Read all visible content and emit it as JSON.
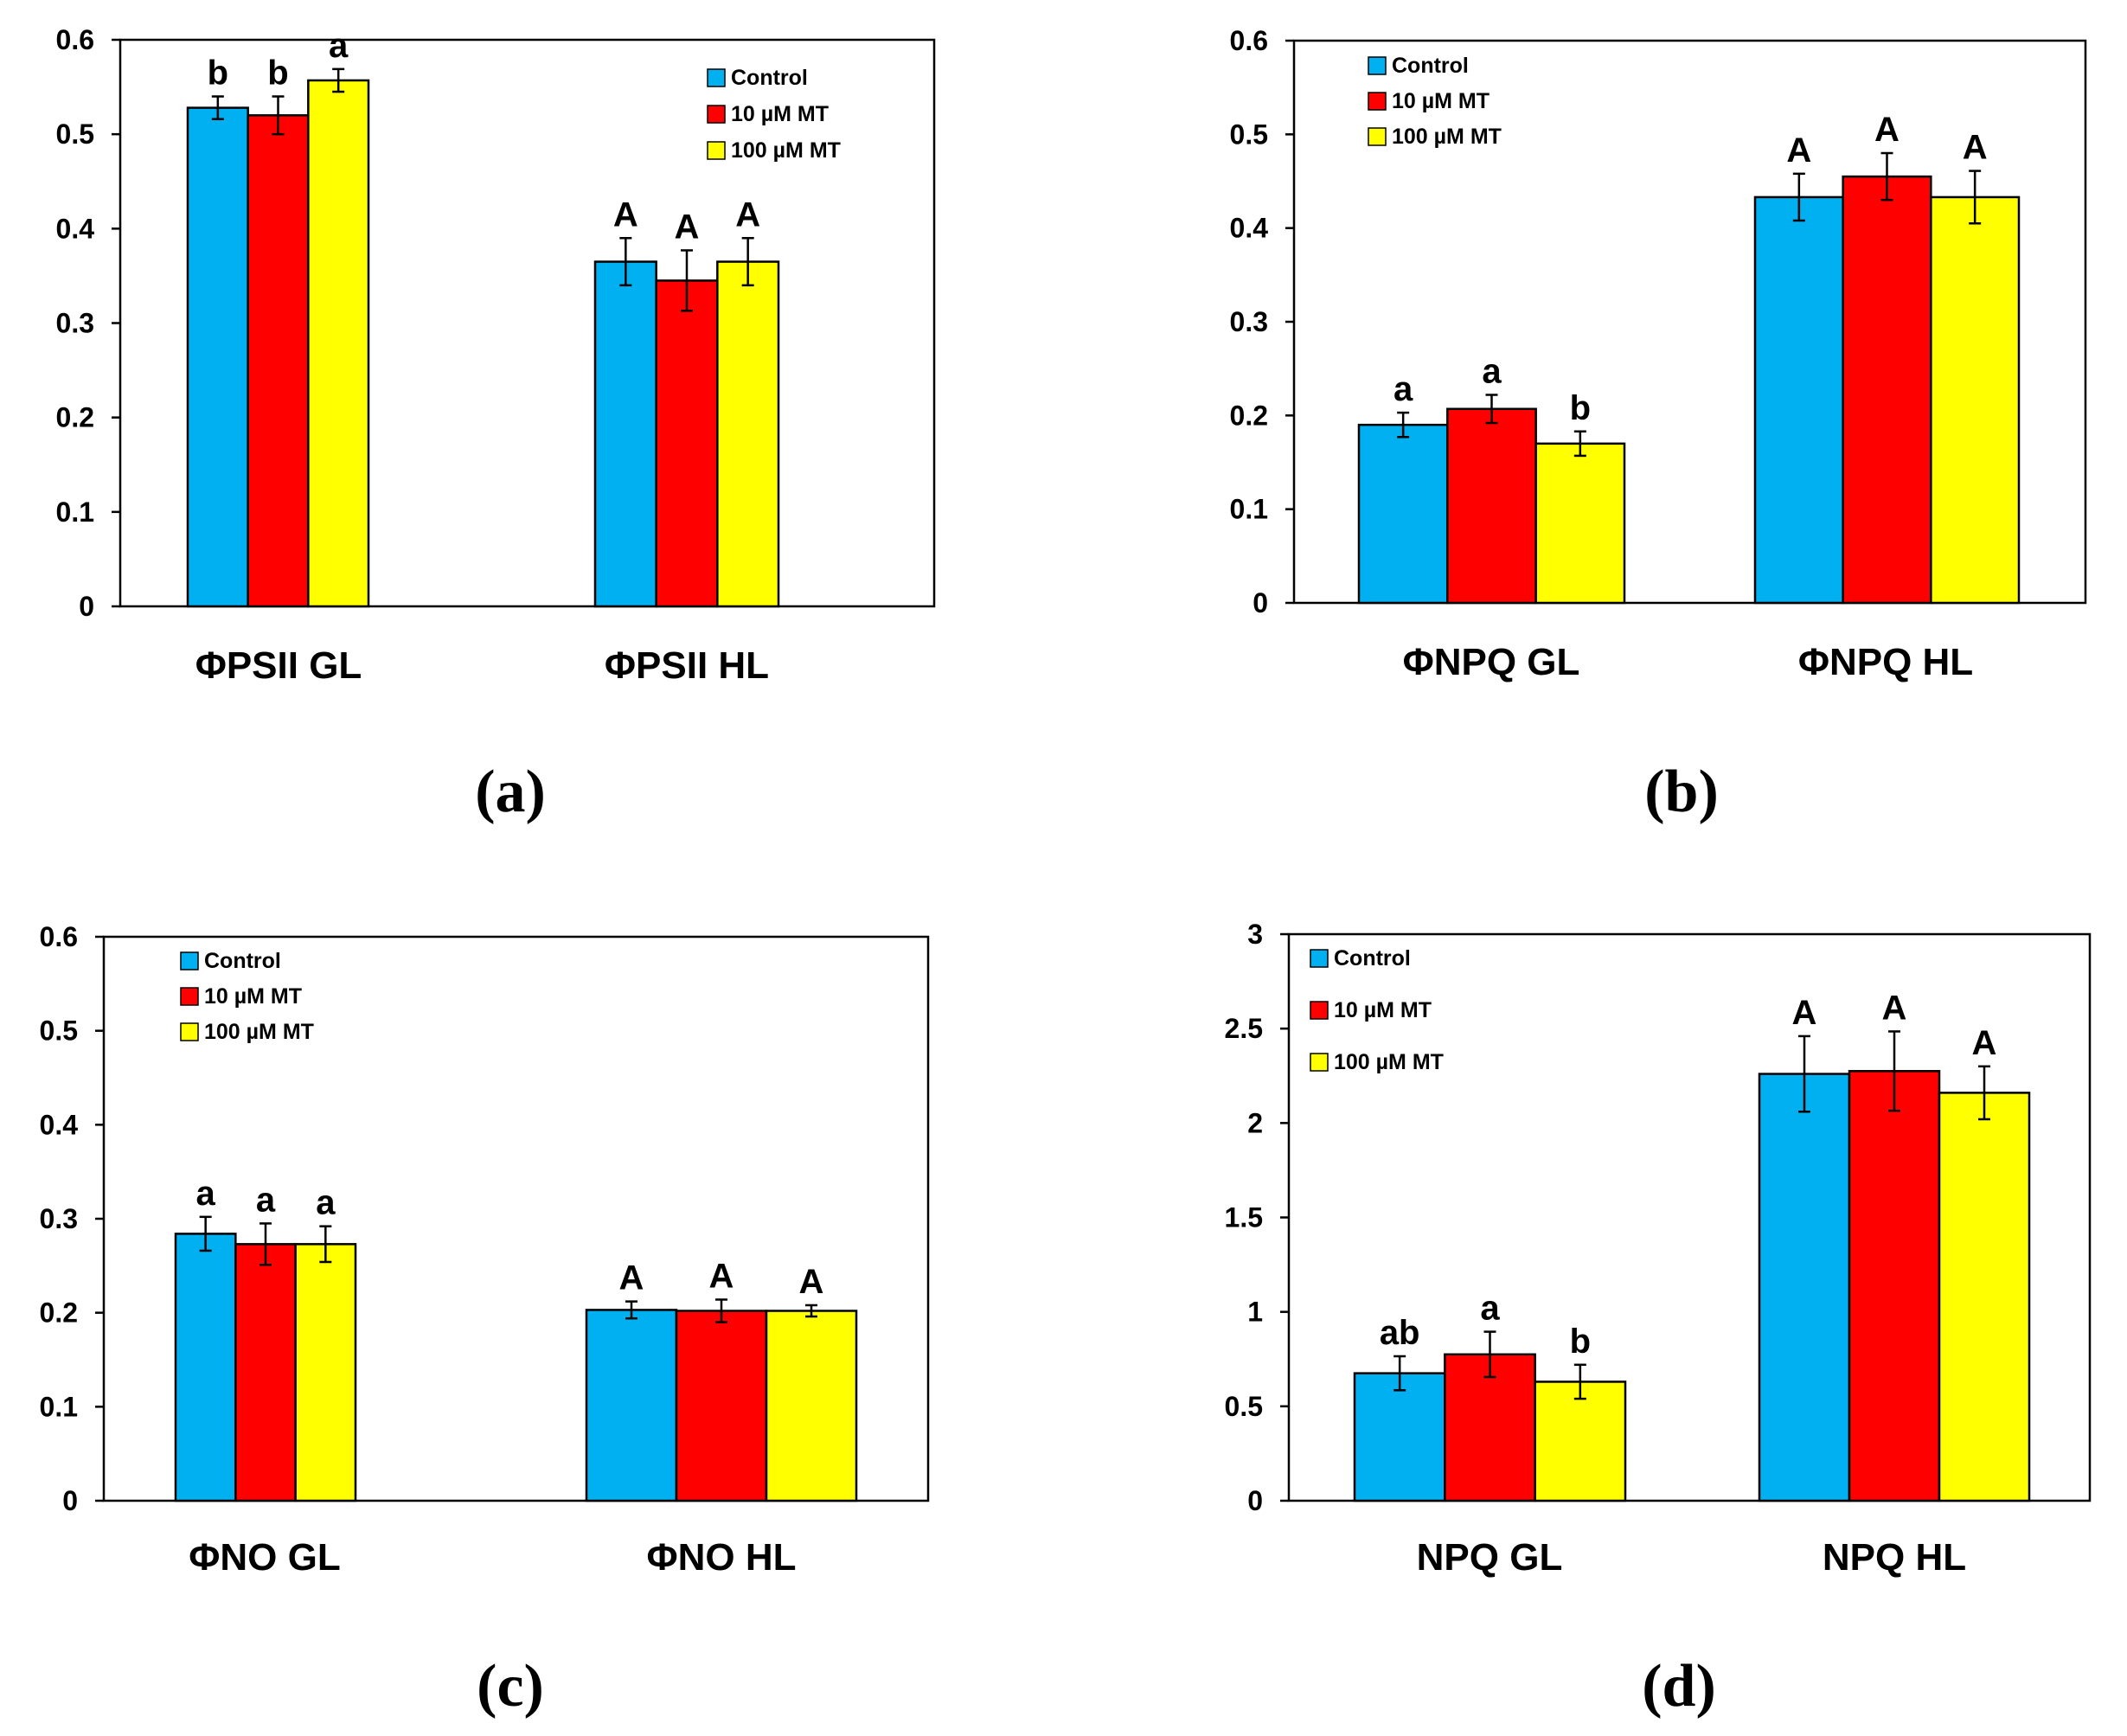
{
  "chart_data": [
    {
      "type": "bar",
      "panel_label": "(a)",
      "categories": [
        "ΦPSII GL",
        "ΦPSII HL"
      ],
      "series": [
        {
          "name": "Control",
          "values": [
            0.528,
            0.365
          ],
          "errors": [
            0.012,
            0.025
          ]
        },
        {
          "name": "10 µM MT",
          "values": [
            0.52,
            0.345
          ],
          "errors": [
            0.02,
            0.032
          ]
        },
        {
          "name": "100 µM MT",
          "values": [
            0.557,
            0.365
          ],
          "errors": [
            0.012,
            0.025
          ]
        }
      ],
      "significance": [
        [
          "b",
          "b",
          "a"
        ],
        [
          "A",
          "A",
          "A"
        ]
      ],
      "ylim": [
        0,
        0.6
      ],
      "yticks": [
        "0",
        "0.1",
        "0.2",
        "0.3",
        "0.4",
        "0.5",
        "0.6"
      ],
      "legend_position": "top-right",
      "grid": false
    },
    {
      "type": "bar",
      "panel_label": "(b)",
      "categories": [
        "ΦNPQ GL",
        "ΦNPQ HL"
      ],
      "series": [
        {
          "name": "Control",
          "values": [
            0.19,
            0.433
          ],
          "errors": [
            0.013,
            0.025
          ]
        },
        {
          "name": "10 µM MT",
          "values": [
            0.207,
            0.455
          ],
          "errors": [
            0.015,
            0.025
          ]
        },
        {
          "name": "100 µM MT",
          "values": [
            0.17,
            0.433
          ],
          "errors": [
            0.013,
            0.028
          ]
        }
      ],
      "significance": [
        [
          "a",
          "a",
          "b"
        ],
        [
          "A",
          "A",
          "A"
        ]
      ],
      "ylim": [
        0,
        0.6
      ],
      "yticks": [
        "0",
        "0.1",
        "0.2",
        "0.3",
        "0.4",
        "0.5",
        "0.6"
      ],
      "legend_position": "top-left",
      "grid": false
    },
    {
      "type": "bar",
      "panel_label": "(c)",
      "categories": [
        "ΦNO GL",
        "ΦNO HL"
      ],
      "series": [
        {
          "name": "Control",
          "values": [
            0.284,
            0.203
          ],
          "errors": [
            0.018,
            0.009
          ]
        },
        {
          "name": "10 µM MT",
          "values": [
            0.273,
            0.202
          ],
          "errors": [
            0.022,
            0.012
          ]
        },
        {
          "name": "100 µM MT",
          "values": [
            0.273,
            0.202
          ],
          "errors": [
            0.019,
            0.006
          ]
        }
      ],
      "significance": [
        [
          "a",
          "a",
          "a"
        ],
        [
          "A",
          "A",
          "A"
        ]
      ],
      "ylim": [
        0,
        0.6
      ],
      "yticks": [
        "0",
        "0.1",
        "0.2",
        "0.3",
        "0.4",
        "0.5",
        "0.6"
      ],
      "legend_position": "top-left",
      "grid": false
    },
    {
      "type": "bar",
      "panel_label": "(d)",
      "categories": [
        "NPQ GL",
        "NPQ HL"
      ],
      "series": [
        {
          "name": "Control",
          "values": [
            0.675,
            2.26
          ],
          "errors": [
            0.09,
            0.2
          ]
        },
        {
          "name": "10 µM MT",
          "values": [
            0.775,
            2.275
          ],
          "errors": [
            0.12,
            0.21
          ]
        },
        {
          "name": "100 µM MT",
          "values": [
            0.63,
            2.16
          ],
          "errors": [
            0.09,
            0.14
          ]
        }
      ],
      "significance": [
        [
          "ab",
          "a",
          "b"
        ],
        [
          "A",
          "A",
          "A"
        ]
      ],
      "ylim": [
        0,
        3
      ],
      "yticks": [
        "0",
        "0.5",
        "1",
        "1.5",
        "2",
        "2.5",
        "3"
      ],
      "legend_position": "top-left",
      "grid": false
    }
  ],
  "colors": {
    "Control": "#00b0f0",
    "10 µM MT": "#ff0000",
    "100 µM MT": "#ffff00",
    "bar_outline": "#000000",
    "axis": "#000000"
  }
}
